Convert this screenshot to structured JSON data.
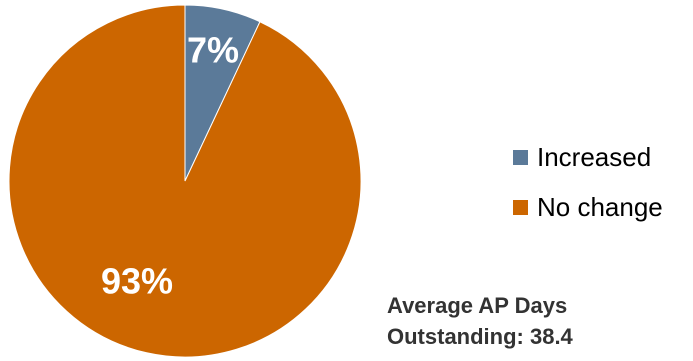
{
  "chart_data": {
    "type": "pie",
    "slices": [
      {
        "name": "Increased",
        "value": 7,
        "label": "7%",
        "color": "#5b7a99"
      },
      {
        "name": "No change",
        "value": 93,
        "label": "93%",
        "color": "#cc6600"
      }
    ],
    "legend_position": "right",
    "annotation": {
      "line1": "Average AP Days",
      "line2": "Outstanding:  38.4"
    }
  }
}
